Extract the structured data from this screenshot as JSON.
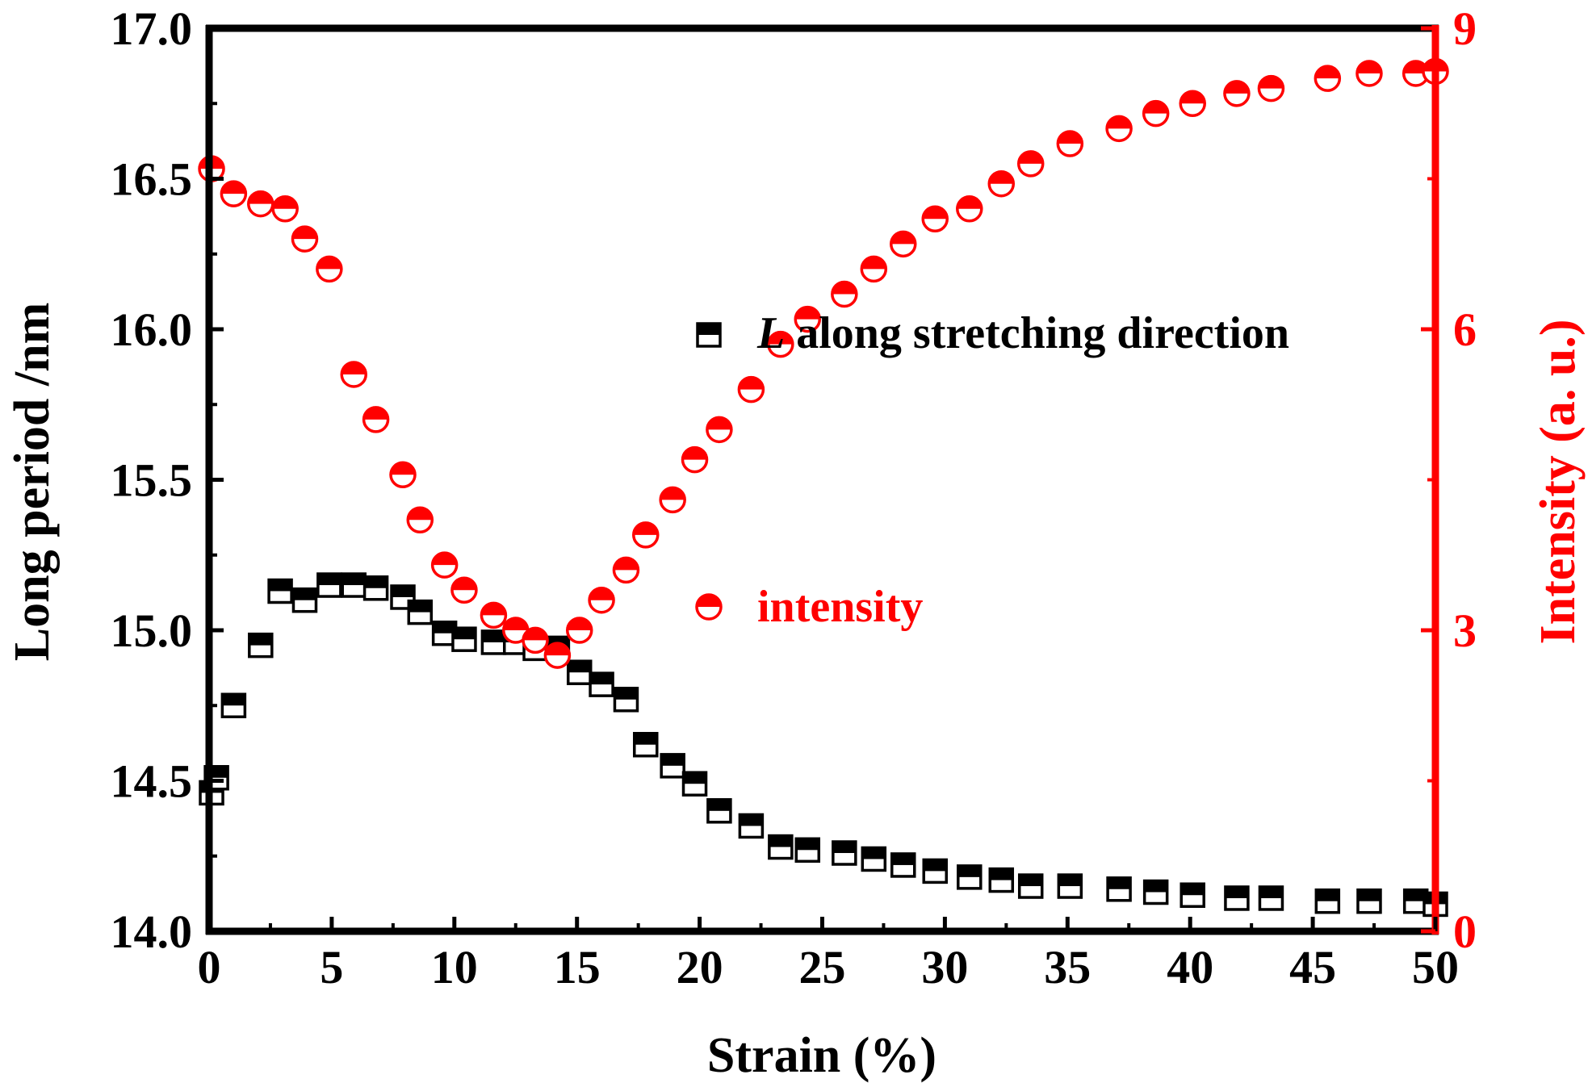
{
  "chart_data": {
    "type": "scatter",
    "xlabel": "Strain (%)",
    "ylabel_left": "Long period /nm",
    "ylabel_right": "Intensity (a. u.)",
    "xlim": [
      0,
      50
    ],
    "ylim_left": [
      14.0,
      17.0
    ],
    "ylim_right": [
      0,
      9
    ],
    "x_ticks": [
      "0",
      "5",
      "10",
      "15",
      "20",
      "25",
      "30",
      "35",
      "40",
      "45",
      "50"
    ],
    "y_left_ticks": [
      "14.0",
      "14.5",
      "15.0",
      "15.5",
      "16.0",
      "16.5",
      "17.0"
    ],
    "y_right_ticks": [
      "0",
      "3",
      "6",
      "9"
    ],
    "grid": false,
    "legend_position": "center-right",
    "colors": {
      "long_period": "#000000",
      "intensity": "#ff0000"
    },
    "series": [
      {
        "name": "L along stretching direction",
        "legend_italic_prefix": "L",
        "legend_rest": " along stretching direction",
        "axis": "left",
        "marker": "half-filled-square",
        "x": [
          0.1,
          0.3,
          1.0,
          2.1,
          2.9,
          3.9,
          4.9,
          5.9,
          6.8,
          7.9,
          8.6,
          9.6,
          10.4,
          11.6,
          12.5,
          13.3,
          14.2,
          15.1,
          16.0,
          17.0,
          17.8,
          18.9,
          19.8,
          20.8,
          22.1,
          23.3,
          24.4,
          25.9,
          27.1,
          28.3,
          29.6,
          31.0,
          32.3,
          33.5,
          35.1,
          37.1,
          38.6,
          40.1,
          41.9,
          43.3,
          45.6,
          47.3,
          49.2,
          50.0
        ],
        "y": [
          14.46,
          14.51,
          14.75,
          14.95,
          15.13,
          15.1,
          15.15,
          15.15,
          15.14,
          15.11,
          15.06,
          14.99,
          14.97,
          14.96,
          14.96,
          14.94,
          14.94,
          14.86,
          14.82,
          14.77,
          14.62,
          14.55,
          14.49,
          14.4,
          14.35,
          14.28,
          14.27,
          14.26,
          14.24,
          14.22,
          14.2,
          14.18,
          14.17,
          14.15,
          14.15,
          14.14,
          14.13,
          14.12,
          14.11,
          14.11,
          14.1,
          14.1,
          14.1,
          14.09
        ]
      },
      {
        "name": "intensity",
        "axis": "right",
        "marker": "half-filled-circle",
        "x": [
          0.1,
          1.0,
          2.1,
          3.1,
          3.9,
          4.9,
          5.9,
          6.8,
          7.9,
          8.6,
          9.6,
          10.4,
          11.6,
          12.5,
          13.3,
          14.2,
          15.1,
          16.0,
          17.0,
          17.8,
          18.9,
          19.8,
          20.8,
          22.1,
          23.3,
          24.4,
          25.9,
          27.1,
          28.3,
          29.6,
          31.0,
          32.3,
          33.5,
          35.1,
          37.1,
          38.6,
          40.1,
          41.9,
          43.3,
          45.6,
          47.3,
          49.2,
          50.0
        ],
        "y": [
          7.6,
          7.35,
          7.25,
          7.2,
          6.9,
          6.6,
          5.55,
          5.1,
          4.55,
          4.1,
          3.65,
          3.4,
          3.15,
          3.0,
          2.9,
          2.75,
          3.0,
          3.3,
          3.6,
          3.95,
          4.3,
          4.7,
          5.0,
          5.4,
          5.85,
          6.1,
          6.35,
          6.6,
          6.85,
          7.1,
          7.2,
          7.45,
          7.65,
          7.85,
          8.0,
          8.15,
          8.25,
          8.35,
          8.4,
          8.5,
          8.55,
          8.55,
          8.57
        ]
      }
    ]
  }
}
